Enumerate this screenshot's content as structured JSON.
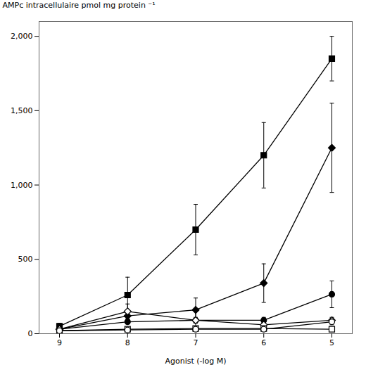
{
  "chart_data": {
    "type": "line",
    "xlabel": "Agonist (-log M)",
    "ylabel": "AMPc intracellulaire pmol mg protein ⁻¹",
    "x": [
      9,
      8,
      7,
      6,
      5
    ],
    "series": [
      {
        "color": "black",
        "marker": "filled-square",
        "values": [
          50,
          260,
          700,
          1200,
          1850
        ],
        "yerr": [
          20,
          120,
          170,
          220,
          150
        ]
      },
      {
        "color": "black",
        "marker": "filled-diamond",
        "values": [
          30,
          120,
          160,
          340,
          1250
        ],
        "yerr": [
          10,
          30,
          80,
          130,
          300
        ]
      },
      {
        "color": "black",
        "marker": "filled-circle",
        "values": [
          30,
          80,
          90,
          90,
          265
        ],
        "yerr": [
          5,
          15,
          20,
          20,
          90
        ]
      },
      {
        "color": "black",
        "marker": "open-diamond",
        "values": [
          30,
          150,
          90,
          60,
          90
        ],
        "yerr": [
          5,
          50,
          70,
          20,
          20
        ]
      },
      {
        "color": "black",
        "marker": "open-square",
        "values": [
          20,
          30,
          35,
          35,
          30
        ],
        "yerr": [
          5,
          10,
          5,
          5,
          10
        ]
      },
      {
        "color": "black",
        "marker": "open-circle",
        "values": [
          20,
          25,
          30,
          30,
          80
        ],
        "yerr": [
          5,
          5,
          5,
          5,
          20
        ]
      }
    ],
    "xlim": [
      9.3,
      4.7
    ],
    "xticks": [
      9,
      8,
      7,
      6,
      5
    ],
    "ylim": [
      0,
      2100
    ],
    "yticks": [
      0,
      500,
      {
        "value": 1000,
        "label": "1,000"
      },
      {
        "value": 1500,
        "label": "1,500"
      },
      {
        "value": 2000,
        "label": "2,000"
      }
    ]
  }
}
